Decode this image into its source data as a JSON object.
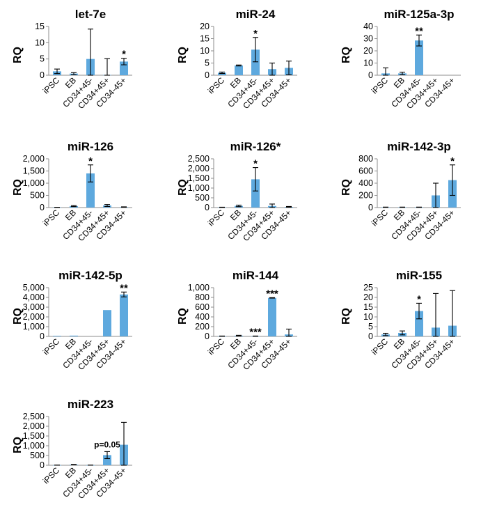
{
  "chart_data": [
    {
      "type": "bar",
      "title": "let-7e",
      "ylabel": "RQ",
      "categories": [
        "iPSC",
        "EB",
        "CD34+45-",
        "CD34+45+",
        "CD34-45+"
      ],
      "values": [
        1.2,
        0.5,
        5.0,
        0.1,
        4.2
      ],
      "errors": [
        0.7,
        0.3,
        9.2,
        5.0,
        1.0
      ],
      "yticks": [
        "0",
        "5",
        "10",
        "15"
      ],
      "ylim": [
        0,
        15
      ],
      "annotations": [
        "",
        "",
        "",
        "",
        "*"
      ]
    },
    {
      "type": "bar",
      "title": "miR-24",
      "ylabel": "RQ",
      "categories": [
        "iPSC",
        "EB",
        "CD34+45-",
        "CD34+45+",
        "CD34-45+"
      ],
      "values": [
        1.0,
        4.0,
        10.5,
        2.5,
        3.0
      ],
      "errors": [
        0.3,
        0.2,
        5.0,
        2.5,
        2.8
      ],
      "yticks": [
        "0",
        "5",
        "10",
        "15",
        "20"
      ],
      "ylim": [
        0,
        20
      ],
      "annotations": [
        "",
        "",
        "*",
        "",
        ""
      ]
    },
    {
      "type": "bar",
      "title": "miR-125a-3p",
      "ylabel": "RQ",
      "categories": [
        "iPSC",
        "EB",
        "CD34+45-",
        "CD34+45+",
        "CD34-45+"
      ],
      "values": [
        1.5,
        1.5,
        28.5,
        0,
        0
      ],
      "errors": [
        4.5,
        1.0,
        4.5,
        0,
        0
      ],
      "yticks": [
        "0",
        "10",
        "20",
        "30",
        "40"
      ],
      "ylim": [
        0,
        40
      ],
      "annotations": [
        "",
        "",
        "**",
        "",
        ""
      ]
    },
    {
      "type": "bar",
      "title": "miR-126",
      "ylabel": "RQ",
      "categories": [
        "iPSC",
        "EB",
        "CD34+45-",
        "CD34+45+",
        "CD34-45+"
      ],
      "values": [
        5,
        60,
        1400,
        85,
        20
      ],
      "errors": [
        5,
        20,
        350,
        40,
        10
      ],
      "yticks": [
        "0",
        "500",
        "1,000",
        "1,500",
        "2,000"
      ],
      "ylim": [
        0,
        2000
      ],
      "annotations": [
        "",
        "",
        "*",
        "",
        ""
      ]
    },
    {
      "type": "bar",
      "title": "miR-126*",
      "ylabel": "RQ",
      "categories": [
        "iPSC",
        "EB",
        "CD34+45-",
        "CD34+45+",
        "CD34-45+"
      ],
      "values": [
        10,
        85,
        1450,
        80,
        35
      ],
      "errors": [
        10,
        40,
        600,
        100,
        20
      ],
      "yticks": [
        "0",
        "500",
        "1,000",
        "1,500",
        "2,000",
        "2,500"
      ],
      "ylim": [
        0,
        2500
      ],
      "annotations": [
        "",
        "",
        "*",
        "",
        ""
      ]
    },
    {
      "type": "bar",
      "title": "miR-142-3p",
      "ylabel": "RQ",
      "categories": [
        "iPSC",
        "EB",
        "CD34+45-",
        "CD34+45+",
        "CD34-45+"
      ],
      "values": [
        5,
        5,
        5,
        200,
        450
      ],
      "errors": [
        3,
        3,
        3,
        200,
        250
      ],
      "yticks": [
        "0",
        "200",
        "400",
        "600",
        "800"
      ],
      "ylim": [
        0,
        800
      ],
      "annotations": [
        "",
        "",
        "",
        "",
        "*"
      ]
    },
    {
      "type": "bar",
      "title": "miR-142-5p",
      "ylabel": "RQ",
      "categories": [
        "iPSC",
        "EB",
        "CD34+45-",
        "CD34+45+",
        "CD34-45+"
      ],
      "values": [
        60,
        80,
        0,
        2700,
        4300
      ],
      "errors": [
        0,
        0,
        0,
        0,
        250
      ],
      "yticks": [
        "0",
        "1,000",
        "2,000",
        "3,000",
        "4,000",
        "5,000"
      ],
      "ylim": [
        0,
        5000
      ],
      "annotations": [
        "",
        "",
        "",
        "",
        "**"
      ]
    },
    {
      "type": "bar",
      "title": "miR-144",
      "ylabel": "RQ",
      "categories": [
        "iPSC",
        "EB",
        "CD34+45-",
        "CD34+45+",
        "CD34-45+"
      ],
      "values": [
        5,
        15,
        5,
        790,
        40
      ],
      "errors": [
        3,
        8,
        3,
        5,
        110
      ],
      "yticks": [
        "0",
        "200",
        "400",
        "600",
        "800",
        "1,000"
      ],
      "ylim": [
        0,
        1000
      ],
      "annotations": [
        "",
        "",
        "***",
        "***",
        ""
      ]
    },
    {
      "type": "bar",
      "title": "miR-155",
      "ylabel": "RQ",
      "categories": [
        "iPSC",
        "EB",
        "CD34+45-",
        "CD34+45+",
        "CD34-45+"
      ],
      "values": [
        1.0,
        1.8,
        13.0,
        4.5,
        5.5
      ],
      "errors": [
        0.6,
        1.0,
        4.0,
        17.5,
        18.0
      ],
      "yticks": [
        "0",
        "5",
        "10",
        "15",
        "20",
        "25"
      ],
      "ylim": [
        0,
        25
      ],
      "annotations": [
        "",
        "",
        "*",
        "",
        ""
      ]
    },
    {
      "type": "bar",
      "title": "miR-223",
      "ylabel": "RQ",
      "categories": [
        "iPSC",
        "EB",
        "CD34+45-",
        "CD34+45+",
        "CD34-45+"
      ],
      "values": [
        5,
        30,
        5,
        520,
        1050
      ],
      "errors": [
        3,
        10,
        3,
        180,
        1150
      ],
      "yticks": [
        "0",
        "500",
        "1,000",
        "1,500",
        "2,000",
        "2,500"
      ],
      "ylim": [
        0,
        2500
      ],
      "annotations": [
        "",
        "",
        "",
        "p=0.05",
        ""
      ]
    }
  ],
  "colors": {
    "bar": "#5ea9de",
    "axis": "#8c8c8c",
    "text": "#000000"
  }
}
